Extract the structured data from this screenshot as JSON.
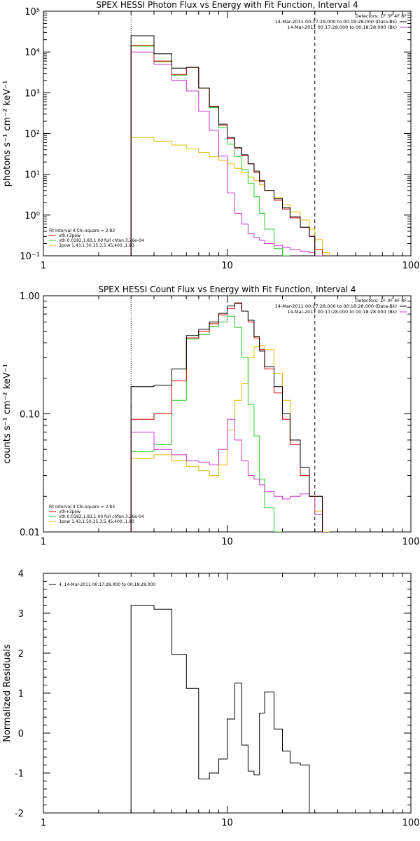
{
  "chart_data": [
    {
      "type": "line",
      "title": "SPEX HESSI Photon Flux vs Energy with Fit Function, Interval 4",
      "xlabel": "",
      "ylabel": "photons s⁻¹ cm⁻² keV⁻¹",
      "xscale": "log",
      "yscale": "log",
      "xlim": [
        1,
        100
      ],
      "ylim": [
        0.1,
        100000
      ],
      "xtick_labels": [
        "1",
        "10",
        "100"
      ],
      "ytick_labels": [
        "10⁻¹",
        "10⁰",
        "10¹",
        "10²",
        "10³",
        "10⁴",
        "10⁵"
      ],
      "vlines": [
        {
          "x": 3,
          "style": "dotted"
        },
        {
          "x": 30,
          "style": "dashed"
        }
      ],
      "legend_right": {
        "header": "Detectors: 1F 3F 4F 8F",
        "entries": [
          {
            "label": "14-Mar-2011 00:17:28.000 to 00:18:28.000 (Data-Bk)",
            "color": "#000000"
          },
          {
            "label": "14-Mar-2011 00:17:28.000 to 00:18:28.000 (Bk)",
            "color": "#cc33cc"
          }
        ]
      },
      "legend_left": {
        "header": "Fit Interval 4   Chi-square = 2.83",
        "entries": [
          {
            "label": "vth+3pow",
            "color": "#dd0000"
          },
          {
            "label": "vth 0.0182,1.83,1.00  full chfan 3.26e-04",
            "color": "#22cc22"
          },
          {
            "label": "3pow 1.43,1.50,15.3,5.45,400.,1.80",
            "color": "#ddbb00"
          }
        ]
      },
      "edges": [
        3,
        4,
        5,
        6,
        7,
        8,
        9,
        10,
        11,
        12,
        13,
        14,
        15,
        16,
        18,
        20,
        22,
        25,
        28,
        30,
        33,
        36
      ],
      "series": [
        {
          "name": "Data-Bk",
          "color": "#000000",
          "values": [
            25000,
            9000,
            4000,
            4200,
            1300,
            450,
            170,
            80,
            45,
            30,
            18,
            12,
            7,
            4,
            2.5,
            1.5,
            0.9,
            0.5,
            0.3,
            null,
            null
          ]
        },
        {
          "name": "Bk",
          "color": "#cc33cc",
          "values": [
            10000,
            5000,
            2000,
            1100,
            350,
            120,
            28,
            3.5,
            1.1,
            0.6,
            0.35,
            0.28,
            0.24,
            0.2,
            0.18,
            0.16,
            0.14,
            0.13,
            0.12,
            0.1,
            null
          ]
        },
        {
          "name": "vth+3pow",
          "color": "#dd0000",
          "values": [
            14500,
            6000,
            2800,
            4200,
            1300,
            460,
            160,
            75,
            44,
            29,
            18,
            11,
            6.5,
            4,
            2.3,
            1.4,
            0.85,
            0.5,
            0.3,
            0.14,
            null
          ]
        },
        {
          "name": "vth",
          "color": "#22cc22",
          "values": [
            14000,
            5800,
            2700,
            4200,
            1300,
            430,
            140,
            55,
            27,
            13,
            6,
            2.8,
            1.1,
            0.45,
            0.15,
            0.06,
            null,
            null,
            null,
            null,
            null
          ]
        },
        {
          "name": "3pow",
          "color": "#ddbb00",
          "values": [
            80,
            65,
            52,
            42,
            34,
            27,
            22,
            18,
            14,
            11,
            8.5,
            7,
            5.5,
            4,
            2.7,
            1.8,
            1.2,
            0.75,
            0.45,
            0.25,
            0.12
          ]
        }
      ]
    },
    {
      "type": "line",
      "title": "SPEX HESSI Count Flux vs Energy with Fit Function, Interval 4",
      "xlabel": "",
      "ylabel": "counts s⁻¹ cm⁻² keV⁻¹",
      "xscale": "log",
      "yscale": "log",
      "xlim": [
        1,
        100
      ],
      "ylim": [
        0.01,
        1.0
      ],
      "xtick_labels": [
        "1",
        "10",
        "100"
      ],
      "ytick_labels": [
        "0.01",
        "0.10",
        "1.00"
      ],
      "vlines": [
        {
          "x": 3,
          "style": "dotted"
        },
        {
          "x": 30,
          "style": "dashed"
        }
      ],
      "legend_right": {
        "header": "Detectors: 1F 3F 4F 8F",
        "entries": [
          {
            "label": "14-Mar-2011 00:17:28.000 to 00:18:28.000 (Data-Bk)",
            "color": "#000000"
          },
          {
            "label": "14-Mar-2011 00:17:28.000 to 00:18:28.000 (Bk)",
            "color": "#cc33cc"
          }
        ]
      },
      "legend_left": {
        "header": "Fit Interval 4   Chi-square = 2.83",
        "entries": [
          {
            "label": "vth+3pow",
            "color": "#dd0000"
          },
          {
            "label": "vth 0.0182,1.83,1.00  full chfan 3.26e-04",
            "color": "#22cc22"
          },
          {
            "label": "3pow 1.43,1.50,15.3,5.45,400.,1.80",
            "color": "#ddbb00"
          }
        ]
      },
      "edges": [
        3,
        4,
        5,
        6,
        7,
        8,
        9,
        10,
        11,
        12,
        13,
        14,
        15,
        16,
        18,
        20,
        22,
        25,
        28,
        30,
        33,
        36
      ],
      "series": [
        {
          "name": "Data-Bk",
          "color": "#000000",
          "values": [
            0.17,
            0.175,
            0.24,
            0.46,
            0.52,
            0.6,
            0.71,
            0.82,
            0.87,
            0.74,
            0.62,
            0.45,
            0.34,
            0.25,
            0.17,
            0.1,
            0.06,
            0.035,
            0.02,
            0.02,
            null
          ]
        },
        {
          "name": "Bk",
          "color": "#cc33cc",
          "values": [
            0.07,
            0.05,
            0.045,
            0.04,
            0.039,
            0.037,
            0.05,
            0.09,
            0.06,
            0.04,
            0.03,
            0.028,
            0.025,
            0.022,
            0.02,
            0.019,
            0.02,
            0.021,
            0.02,
            0.014,
            null
          ]
        },
        {
          "name": "vth+3pow",
          "color": "#dd0000",
          "values": [
            0.09,
            0.1,
            0.19,
            0.44,
            0.5,
            0.58,
            0.69,
            0.78,
            0.86,
            0.74,
            0.6,
            0.44,
            0.35,
            0.24,
            0.15,
            0.09,
            0.055,
            0.03,
            0.02,
            0.02,
            null
          ]
        },
        {
          "name": "vth",
          "color": "#22cc22",
          "values": [
            0.048,
            0.055,
            0.13,
            0.43,
            0.47,
            0.55,
            0.6,
            0.67,
            0.54,
            0.3,
            0.12,
            0.065,
            0.028,
            0.016,
            0.01,
            null,
            null,
            null,
            null,
            null,
            null
          ]
        },
        {
          "name": "3pow",
          "color": "#ddbb00",
          "values": [
            0.042,
            0.045,
            0.04,
            0.036,
            0.033,
            0.03,
            0.037,
            0.073,
            0.13,
            0.18,
            0.3,
            0.37,
            0.38,
            0.35,
            0.22,
            0.13,
            0.06,
            0.03,
            0.02,
            0.015,
            0.01
          ]
        }
      ]
    },
    {
      "type": "line",
      "title": "",
      "xlabel": "",
      "ylabel": "Normalized Residuals",
      "xscale": "log",
      "yscale": "linear",
      "xlim": [
        1,
        100
      ],
      "ylim": [
        -2,
        4
      ],
      "xtick_labels": [
        "1",
        "10",
        "100"
      ],
      "ytick_labels": [
        "-2",
        "-1",
        "0",
        "1",
        "2",
        "3",
        "4"
      ],
      "legend": {
        "entries": [
          {
            "label": "4, 14-Mar-2011 00:17:28.000 to 00:18:28.000",
            "color": "#000000"
          }
        ]
      },
      "edges": [
        3,
        4,
        5,
        6,
        7,
        8,
        9,
        10,
        11,
        12,
        13,
        14,
        15,
        16,
        18,
        20,
        22,
        25,
        28,
        30
      ],
      "series": [
        {
          "name": "4, 14-Mar-2011 00:17:28.000 to 00:18:28.000",
          "color": "#000000",
          "values": [
            3.2,
            3.1,
            1.97,
            1.12,
            -1.15,
            -1.0,
            -0.65,
            0.35,
            1.25,
            -0.3,
            -0.95,
            -1.05,
            0.5,
            1.03,
            0.1,
            -0.45,
            -0.75,
            -0.8,
            -2.0
          ]
        }
      ]
    }
  ]
}
